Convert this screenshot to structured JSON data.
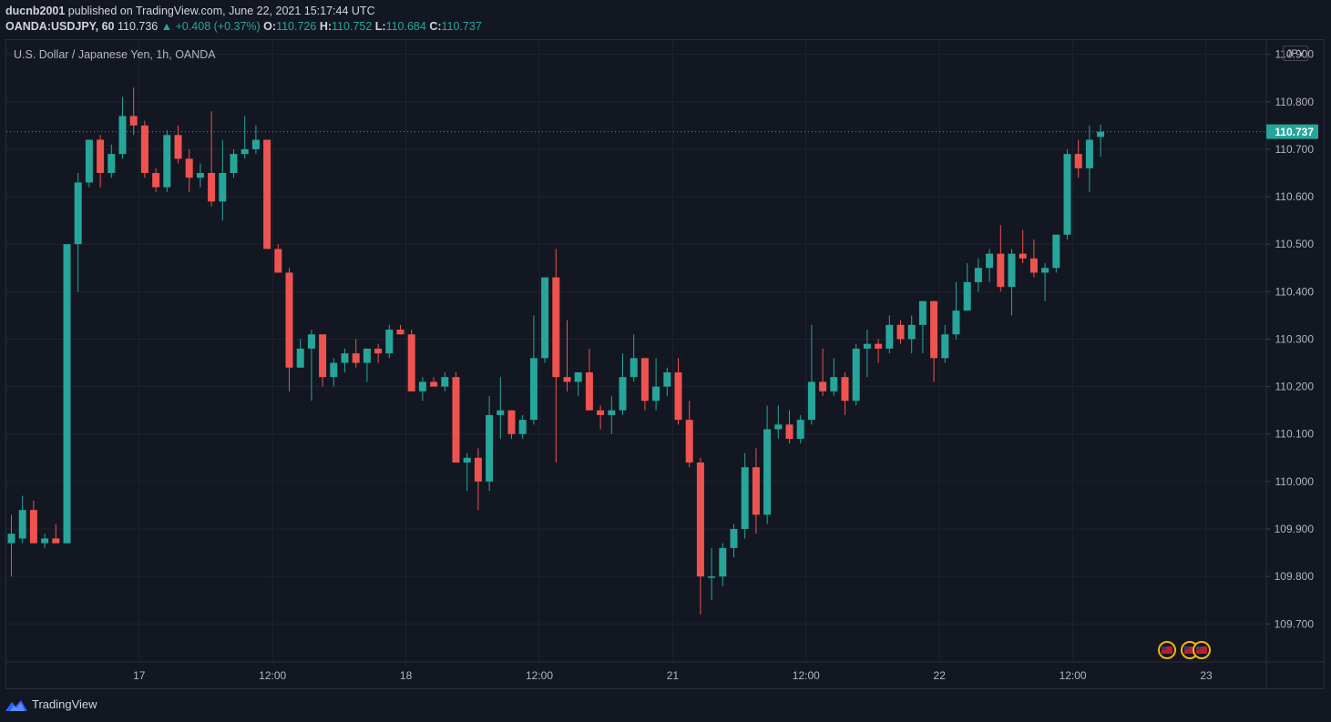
{
  "header": {
    "publisher": "ducnb2001",
    "published_text": "published on TradingView.com, June 22, 2021 15:17:44 UTC",
    "symbol": "OANDA:USDJPY, 60",
    "last": "110.736",
    "change": "▲ +0.408 (+0.37%)",
    "o_label": "O:",
    "o_value": "110.726",
    "h_label": "H:",
    "h_value": "110.752",
    "l_label": "L:",
    "l_value": "110.684",
    "c_label": "C:",
    "c_value": "110.737"
  },
  "legend": "U.S. Dollar / Japanese Yen, 1h, OANDA",
  "currency": "JPY",
  "footer": {
    "brand": "TradingView"
  },
  "colors": {
    "up": "#26a69a",
    "down": "#ef5350",
    "grid": "#1f2330",
    "axis_text": "#b2b5be",
    "background": "#131722"
  },
  "chart_data": {
    "type": "candlestick",
    "title": "U.S. Dollar / Japanese Yen, 1h, OANDA",
    "ylim": [
      109.62,
      110.93
    ],
    "y_ticks": [
      "110.900",
      "110.800",
      "110.700",
      "110.600",
      "110.500",
      "110.400",
      "110.300",
      "110.200",
      "110.100",
      "110.000",
      "109.900",
      "109.800",
      "109.700"
    ],
    "x_ticks": [
      "17",
      "12:00",
      "18",
      "12:00",
      "21",
      "12:00",
      "22",
      "12:00",
      "23"
    ],
    "last_price_label": "110.737",
    "last_price": 110.737,
    "candles": [
      {
        "o": 109.87,
        "h": 109.93,
        "l": 109.8,
        "c": 109.89
      },
      {
        "o": 109.88,
        "h": 109.97,
        "l": 109.87,
        "c": 109.94
      },
      {
        "o": 109.94,
        "h": 109.96,
        "l": 109.87,
        "c": 109.87
      },
      {
        "o": 109.87,
        "h": 109.89,
        "l": 109.86,
        "c": 109.88
      },
      {
        "o": 109.88,
        "h": 109.91,
        "l": 109.87,
        "c": 109.87
      },
      {
        "o": 109.87,
        "h": 110.5,
        "l": 109.87,
        "c": 110.5
      },
      {
        "o": 110.5,
        "h": 110.65,
        "l": 110.4,
        "c": 110.63
      },
      {
        "o": 110.63,
        "h": 110.72,
        "l": 110.62,
        "c": 110.72
      },
      {
        "o": 110.72,
        "h": 110.73,
        "l": 110.62,
        "c": 110.65
      },
      {
        "o": 110.65,
        "h": 110.71,
        "l": 110.64,
        "c": 110.69
      },
      {
        "o": 110.69,
        "h": 110.81,
        "l": 110.68,
        "c": 110.77
      },
      {
        "o": 110.77,
        "h": 110.83,
        "l": 110.73,
        "c": 110.75
      },
      {
        "o": 110.75,
        "h": 110.76,
        "l": 110.64,
        "c": 110.65
      },
      {
        "o": 110.65,
        "h": 110.66,
        "l": 110.61,
        "c": 110.62
      },
      {
        "o": 110.62,
        "h": 110.74,
        "l": 110.61,
        "c": 110.73
      },
      {
        "o": 110.73,
        "h": 110.75,
        "l": 110.67,
        "c": 110.68
      },
      {
        "o": 110.68,
        "h": 110.7,
        "l": 110.61,
        "c": 110.64
      },
      {
        "o": 110.64,
        "h": 110.67,
        "l": 110.62,
        "c": 110.65
      },
      {
        "o": 110.65,
        "h": 110.78,
        "l": 110.58,
        "c": 110.59
      },
      {
        "o": 110.59,
        "h": 110.72,
        "l": 110.55,
        "c": 110.65
      },
      {
        "o": 110.65,
        "h": 110.7,
        "l": 110.64,
        "c": 110.69
      },
      {
        "o": 110.69,
        "h": 110.77,
        "l": 110.68,
        "c": 110.7
      },
      {
        "o": 110.7,
        "h": 110.75,
        "l": 110.69,
        "c": 110.72
      },
      {
        "o": 110.72,
        "h": 110.72,
        "l": 110.49,
        "c": 110.49
      },
      {
        "o": 110.49,
        "h": 110.5,
        "l": 110.44,
        "c": 110.44
      },
      {
        "o": 110.44,
        "h": 110.45,
        "l": 110.19,
        "c": 110.24
      },
      {
        "o": 110.24,
        "h": 110.3,
        "l": 110.24,
        "c": 110.28
      },
      {
        "o": 110.28,
        "h": 110.32,
        "l": 110.17,
        "c": 110.31
      },
      {
        "o": 110.31,
        "h": 110.31,
        "l": 110.2,
        "c": 110.22
      },
      {
        "o": 110.22,
        "h": 110.26,
        "l": 110.2,
        "c": 110.25
      },
      {
        "o": 110.25,
        "h": 110.28,
        "l": 110.23,
        "c": 110.27
      },
      {
        "o": 110.27,
        "h": 110.3,
        "l": 110.24,
        "c": 110.25
      },
      {
        "o": 110.25,
        "h": 110.28,
        "l": 110.21,
        "c": 110.28
      },
      {
        "o": 110.28,
        "h": 110.29,
        "l": 110.25,
        "c": 110.27
      },
      {
        "o": 110.27,
        "h": 110.33,
        "l": 110.26,
        "c": 110.32
      },
      {
        "o": 110.32,
        "h": 110.33,
        "l": 110.31,
        "c": 110.31
      },
      {
        "o": 110.31,
        "h": 110.32,
        "l": 110.19,
        "c": 110.19
      },
      {
        "o": 110.19,
        "h": 110.22,
        "l": 110.17,
        "c": 110.21
      },
      {
        "o": 110.21,
        "h": 110.22,
        "l": 110.2,
        "c": 110.2
      },
      {
        "o": 110.2,
        "h": 110.23,
        "l": 110.19,
        "c": 110.22
      },
      {
        "o": 110.22,
        "h": 110.23,
        "l": 110.04,
        "c": 110.04
      },
      {
        "o": 110.04,
        "h": 110.06,
        "l": 109.98,
        "c": 110.05
      },
      {
        "o": 110.05,
        "h": 110.07,
        "l": 109.94,
        "c": 110.0
      },
      {
        "o": 110.0,
        "h": 110.18,
        "l": 109.98,
        "c": 110.14
      },
      {
        "o": 110.14,
        "h": 110.22,
        "l": 110.09,
        "c": 110.15
      },
      {
        "o": 110.15,
        "h": 110.15,
        "l": 110.09,
        "c": 110.1
      },
      {
        "o": 110.1,
        "h": 110.14,
        "l": 110.09,
        "c": 110.13
      },
      {
        "o": 110.13,
        "h": 110.35,
        "l": 110.12,
        "c": 110.26
      },
      {
        "o": 110.26,
        "h": 110.42,
        "l": 110.25,
        "c": 110.43
      },
      {
        "o": 110.43,
        "h": 110.49,
        "l": 110.04,
        "c": 110.22
      },
      {
        "o": 110.22,
        "h": 110.34,
        "l": 110.19,
        "c": 110.21
      },
      {
        "o": 110.21,
        "h": 110.23,
        "l": 110.18,
        "c": 110.23
      },
      {
        "o": 110.23,
        "h": 110.28,
        "l": 110.15,
        "c": 110.15
      },
      {
        "o": 110.15,
        "h": 110.16,
        "l": 110.11,
        "c": 110.14
      },
      {
        "o": 110.14,
        "h": 110.18,
        "l": 110.1,
        "c": 110.15
      },
      {
        "o": 110.15,
        "h": 110.27,
        "l": 110.14,
        "c": 110.22
      },
      {
        "o": 110.22,
        "h": 110.31,
        "l": 110.21,
        "c": 110.26
      },
      {
        "o": 110.26,
        "h": 110.26,
        "l": 110.15,
        "c": 110.17
      },
      {
        "o": 110.17,
        "h": 110.26,
        "l": 110.15,
        "c": 110.2
      },
      {
        "o": 110.2,
        "h": 110.24,
        "l": 110.18,
        "c": 110.23
      },
      {
        "o": 110.23,
        "h": 110.26,
        "l": 110.12,
        "c": 110.13
      },
      {
        "o": 110.13,
        "h": 110.17,
        "l": 110.03,
        "c": 110.04
      },
      {
        "o": 110.04,
        "h": 110.05,
        "l": 109.72,
        "c": 109.8
      },
      {
        "o": 109.8,
        "h": 109.86,
        "l": 109.75,
        "c": 109.8
      },
      {
        "o": 109.8,
        "h": 109.87,
        "l": 109.78,
        "c": 109.86
      },
      {
        "o": 109.86,
        "h": 109.91,
        "l": 109.84,
        "c": 109.9
      },
      {
        "o": 109.9,
        "h": 110.06,
        "l": 109.88,
        "c": 110.03
      },
      {
        "o": 110.03,
        "h": 110.07,
        "l": 109.89,
        "c": 109.93
      },
      {
        "o": 109.93,
        "h": 110.16,
        "l": 109.91,
        "c": 110.11
      },
      {
        "o": 110.11,
        "h": 110.16,
        "l": 110.09,
        "c": 110.12
      },
      {
        "o": 110.12,
        "h": 110.15,
        "l": 110.08,
        "c": 110.09
      },
      {
        "o": 110.09,
        "h": 110.14,
        "l": 110.08,
        "c": 110.13
      },
      {
        "o": 110.13,
        "h": 110.33,
        "l": 110.12,
        "c": 110.21
      },
      {
        "o": 110.21,
        "h": 110.28,
        "l": 110.18,
        "c": 110.19
      },
      {
        "o": 110.19,
        "h": 110.26,
        "l": 110.18,
        "c": 110.22
      },
      {
        "o": 110.22,
        "h": 110.23,
        "l": 110.14,
        "c": 110.17
      },
      {
        "o": 110.17,
        "h": 110.29,
        "l": 110.16,
        "c": 110.28
      },
      {
        "o": 110.28,
        "h": 110.32,
        "l": 110.22,
        "c": 110.29
      },
      {
        "o": 110.29,
        "h": 110.3,
        "l": 110.25,
        "c": 110.28
      },
      {
        "o": 110.28,
        "h": 110.35,
        "l": 110.27,
        "c": 110.33
      },
      {
        "o": 110.33,
        "h": 110.34,
        "l": 110.29,
        "c": 110.3
      },
      {
        "o": 110.3,
        "h": 110.35,
        "l": 110.27,
        "c": 110.33
      },
      {
        "o": 110.33,
        "h": 110.38,
        "l": 110.27,
        "c": 110.38
      },
      {
        "o": 110.38,
        "h": 110.38,
        "l": 110.21,
        "c": 110.26
      },
      {
        "o": 110.26,
        "h": 110.33,
        "l": 110.25,
        "c": 110.31
      },
      {
        "o": 110.31,
        "h": 110.42,
        "l": 110.3,
        "c": 110.36
      },
      {
        "o": 110.36,
        "h": 110.46,
        "l": 110.36,
        "c": 110.42
      },
      {
        "o": 110.42,
        "h": 110.47,
        "l": 110.4,
        "c": 110.45
      },
      {
        "o": 110.45,
        "h": 110.49,
        "l": 110.42,
        "c": 110.48
      },
      {
        "o": 110.48,
        "h": 110.54,
        "l": 110.4,
        "c": 110.41
      },
      {
        "o": 110.41,
        "h": 110.49,
        "l": 110.35,
        "c": 110.48
      },
      {
        "o": 110.48,
        "h": 110.53,
        "l": 110.46,
        "c": 110.47
      },
      {
        "o": 110.47,
        "h": 110.51,
        "l": 110.43,
        "c": 110.44
      },
      {
        "o": 110.44,
        "h": 110.46,
        "l": 110.38,
        "c": 110.45
      },
      {
        "o": 110.45,
        "h": 110.52,
        "l": 110.44,
        "c": 110.52
      },
      {
        "o": 110.52,
        "h": 110.7,
        "l": 110.51,
        "c": 110.69
      },
      {
        "o": 110.69,
        "h": 110.72,
        "l": 110.64,
        "c": 110.66
      },
      {
        "o": 110.66,
        "h": 110.75,
        "l": 110.61,
        "c": 110.72
      },
      {
        "o": 110.726,
        "h": 110.752,
        "l": 110.684,
        "c": 110.737
      }
    ]
  }
}
